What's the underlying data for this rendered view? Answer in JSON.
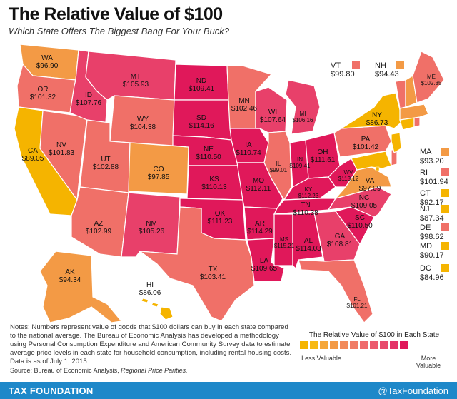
{
  "title": "The Relative Value of $100",
  "subtitle": "Which State Offers The Biggest Bang For Your Buck?",
  "colors": {
    "least": "#f5b400",
    "less": "#f39a45",
    "mid": "#f07068",
    "more": "#e8406a",
    "most": "#e0185a",
    "footer": "#1e88c9",
    "border": "#ffffff"
  },
  "map_labels": [
    {
      "code": "WA",
      "value": "$96.90"
    },
    {
      "code": "OR",
      "value": "$101.32"
    },
    {
      "code": "CA",
      "value": "$89.05"
    },
    {
      "code": "NV",
      "value": "$101.83"
    },
    {
      "code": "ID",
      "value": "$107.76"
    },
    {
      "code": "MT",
      "value": "$105.93"
    },
    {
      "code": "WY",
      "value": "$104.38"
    },
    {
      "code": "UT",
      "value": "$102.88"
    },
    {
      "code": "CO",
      "value": "$97.85"
    },
    {
      "code": "AZ",
      "value": "$102.99"
    },
    {
      "code": "NM",
      "value": "$105.26"
    },
    {
      "code": "ND",
      "value": "$109.41"
    },
    {
      "code": "SD",
      "value": "$114.16"
    },
    {
      "code": "NE",
      "value": "$110.50"
    },
    {
      "code": "KS",
      "value": "$110.13"
    },
    {
      "code": "OK",
      "value": "$111.23"
    },
    {
      "code": "TX",
      "value": "$103.41"
    },
    {
      "code": "MN",
      "value": "$102.46"
    },
    {
      "code": "IA",
      "value": "$110.74"
    },
    {
      "code": "MO",
      "value": "$112.11"
    },
    {
      "code": "AR",
      "value": "$114.29"
    },
    {
      "code": "LA",
      "value": "$109.65"
    },
    {
      "code": "WI",
      "value": "$107.64"
    },
    {
      "code": "IL",
      "value": "$99.01"
    },
    {
      "code": "MI",
      "value": "$106.16"
    },
    {
      "code": "IN",
      "value": "$109.41"
    },
    {
      "code": "OH",
      "value": "$111.61"
    },
    {
      "code": "KY",
      "value": "$112.23"
    },
    {
      "code": "WV",
      "value": "$113.12"
    },
    {
      "code": "TN",
      "value": "$110.38"
    },
    {
      "code": "MS",
      "value": "$115.21"
    },
    {
      "code": "AL",
      "value": "$114.03"
    },
    {
      "code": "GA",
      "value": "$108.81"
    },
    {
      "code": "SC",
      "value": "$110.50"
    },
    {
      "code": "NC",
      "value": "$109.05"
    },
    {
      "code": "VA",
      "value": "$97.09"
    },
    {
      "code": "PA",
      "value": "$101.42"
    },
    {
      "code": "NY",
      "value": "$86.73"
    },
    {
      "code": "ME",
      "value": "$102.35"
    },
    {
      "code": "FL",
      "value": "$101.21"
    },
    {
      "code": "AK",
      "value": "$94.34"
    },
    {
      "code": "HI",
      "value": "$86.06"
    }
  ],
  "top_labels": [
    {
      "code": "VT",
      "value": "$99.80"
    },
    {
      "code": "NH",
      "value": "$94.43"
    }
  ],
  "side_labels": [
    {
      "code": "MA",
      "value": "$93.20"
    },
    {
      "code": "RI",
      "value": "$101.94"
    },
    {
      "code": "CT",
      "value": "$92.17"
    },
    {
      "code": "NJ",
      "value": "$87.34"
    },
    {
      "code": "DE",
      "value": "$98.62"
    },
    {
      "code": "MD",
      "value": "$90.17"
    },
    {
      "code": "DC",
      "value": "$84.96"
    }
  ],
  "notes": {
    "text": "Notes: Numbers represent value of goods that $100 dollars can buy in each state compared to the national average. The Bureau of Economic Analysis has developed a methodology using Personal Consumption Expenditure and American Community Survey data to estimate average price levels in each state for household consumption, including rental housing costs. Data is as of July 1, 2015.",
    "source_prefix": "Source: Bureau of Economic Analysis, ",
    "source_title": "Regional Price Parities."
  },
  "legend": {
    "title": "The Relative Value of $100 in Each State",
    "low_label": "Less Valuable",
    "high_label": "More Valuable",
    "swatches": [
      "#f5b400",
      "#f7b916",
      "#f5a73a",
      "#f39a45",
      "#f28a5a",
      "#f07c66",
      "#ef6a6c",
      "#ec5a6e",
      "#e84a6c",
      "#e43468",
      "#e0185a"
    ]
  },
  "footer": {
    "left": "TAX FOUNDATION",
    "right": "@TaxFoundation"
  }
}
